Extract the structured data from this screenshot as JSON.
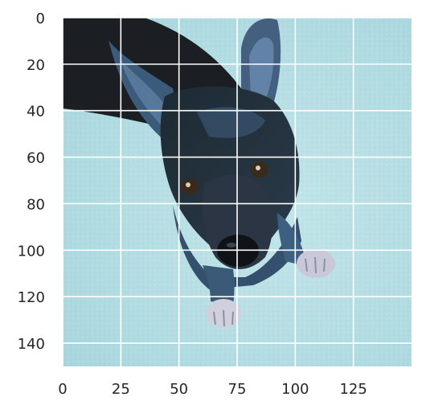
{
  "image": {
    "subject": "dog-photo",
    "xlim": [
      0,
      150
    ],
    "ylim": [
      150,
      0
    ],
    "background_color": "#b3dde3",
    "grid_color": "#ffffff"
  },
  "axes": {
    "x_ticks": [
      {
        "value": 0,
        "label": "0"
      },
      {
        "value": 25,
        "label": "25"
      },
      {
        "value": 50,
        "label": "50"
      },
      {
        "value": 75,
        "label": "75"
      },
      {
        "value": 100,
        "label": "100"
      },
      {
        "value": 125,
        "label": "125"
      }
    ],
    "y_ticks": [
      {
        "value": 0,
        "label": "0"
      },
      {
        "value": 20,
        "label": "20"
      },
      {
        "value": 40,
        "label": "40"
      },
      {
        "value": 60,
        "label": "60"
      },
      {
        "value": 80,
        "label": "80"
      },
      {
        "value": 100,
        "label": "100"
      },
      {
        "value": 120,
        "label": "120"
      },
      {
        "value": 140,
        "label": "140"
      }
    ]
  }
}
